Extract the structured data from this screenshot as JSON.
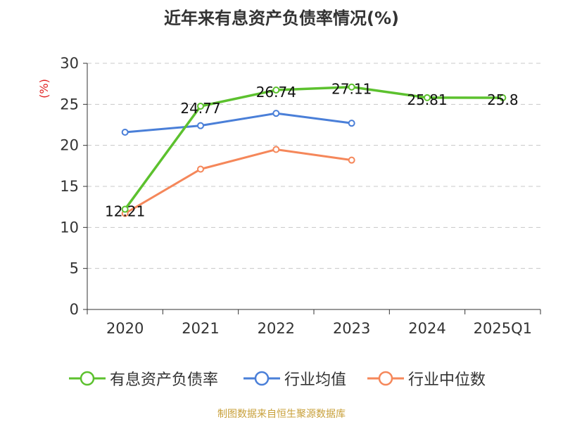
{
  "title": "近年来有息资产负债率情况(%)",
  "source": "制图数据来自恒生聚源数据库",
  "chart_data": {
    "type": "line",
    "title": "近年来有息资产负债率情况(%)",
    "ylabel": "(%)",
    "xlabel": "",
    "categories": [
      "2020",
      "2021",
      "2022",
      "2023",
      "2024",
      "2025Q1"
    ],
    "ylim": [
      0,
      30
    ],
    "yticks": [
      0,
      5,
      10,
      15,
      20,
      25,
      30
    ],
    "grid": true,
    "legend_position": "bottom",
    "series": [
      {
        "name": "有息资产负债率",
        "color": "#5cc12e",
        "values": [
          12.21,
          24.77,
          26.74,
          27.11,
          25.81,
          25.8
        ],
        "labels": [
          "12.21",
          "24.77",
          "26.74",
          "27.11",
          "25.81",
          "25.8"
        ],
        "show_labels": true
      },
      {
        "name": "行业均值",
        "color": "#4a7fd8",
        "values": [
          21.6,
          22.4,
          23.9,
          22.7,
          null,
          null
        ],
        "show_labels": false
      },
      {
        "name": "行业中位数",
        "color": "#f5875a",
        "values": [
          11.7,
          17.1,
          19.5,
          18.2,
          null,
          null
        ],
        "show_labels": false
      }
    ]
  }
}
